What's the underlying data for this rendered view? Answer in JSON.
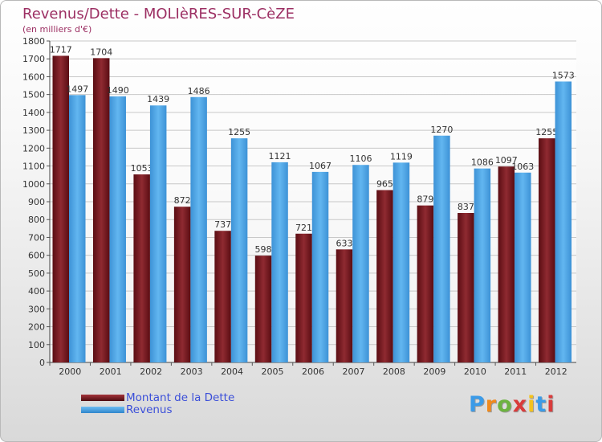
{
  "title": "Revenus/Dette - MOLIèRES-SUR-CèZE",
  "subtitle": "(en milliers d'€)",
  "logo": {
    "text": "Proxiti",
    "colors": [
      "#3b9be8",
      "#f08a1d",
      "#6cb33f",
      "#d93b3b",
      "#f4c21c",
      "#3b9be8",
      "#d93b3b"
    ]
  },
  "colors": {
    "debt": "#7b1e24",
    "revenue": "#4aa3e6",
    "axis_text": "#333333",
    "grid": "#c8c8c8"
  },
  "legend": [
    {
      "label": "Montant de la Dette",
      "color": "#7b1e24"
    },
    {
      "label": "Revenus",
      "color": "#4aa3e6"
    }
  ],
  "chart_data": {
    "type": "bar",
    "title": "Revenus/Dette - MOLIèRES-SUR-CèZE",
    "ylabel": "(en milliers d'€)",
    "xlabel": "",
    "categories": [
      "2000",
      "2001",
      "2002",
      "2003",
      "2004",
      "2005",
      "2006",
      "2007",
      "2008",
      "2009",
      "2010",
      "2011",
      "2012"
    ],
    "series": [
      {
        "name": "Montant de la Dette",
        "values": [
          1717,
          1704,
          1053,
          872,
          737,
          598,
          721,
          633,
          965,
          879,
          837,
          1097,
          1255
        ]
      },
      {
        "name": "Revenus",
        "values": [
          1497,
          1490,
          1439,
          1486,
          1255,
          1121,
          1067,
          1106,
          1119,
          1270,
          1086,
          1063,
          1573
        ]
      }
    ],
    "ylim": [
      0,
      1800
    ],
    "yticks": [
      0,
      100,
      200,
      300,
      400,
      500,
      600,
      700,
      800,
      900,
      1000,
      1100,
      1200,
      1300,
      1400,
      1500,
      1600,
      1700,
      1800
    ],
    "grid": true,
    "legend_position": "bottom-left"
  }
}
